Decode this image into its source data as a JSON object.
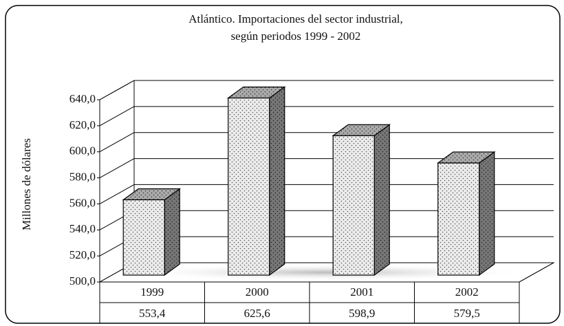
{
  "chart_data": {
    "type": "bar3d",
    "title": [
      "Atlántico. Importaciones del sector industrial,",
      "según periodos 1999 - 2002"
    ],
    "y_label": "Millones de dólares",
    "categories": [
      "1999",
      "2000",
      "2001",
      "2002"
    ],
    "values": [
      553.4,
      625.6,
      598.9,
      579.5
    ],
    "value_labels": [
      "553,4",
      "625,6",
      "598,9",
      "579,5"
    ],
    "ylim": [
      500,
      640
    ],
    "yticks": [
      {
        "value": 500,
        "label": "500,0"
      },
      {
        "value": 520,
        "label": "520,0"
      },
      {
        "value": 540,
        "label": "540,0"
      },
      {
        "value": 560,
        "label": "560,0"
      },
      {
        "value": 580,
        "label": "580,0"
      },
      {
        "value": 600,
        "label": "600,0"
      },
      {
        "value": 620,
        "label": "620,0"
      },
      {
        "value": 640,
        "label": "640,0"
      }
    ],
    "grid": true,
    "color": "#e8e8e8"
  }
}
